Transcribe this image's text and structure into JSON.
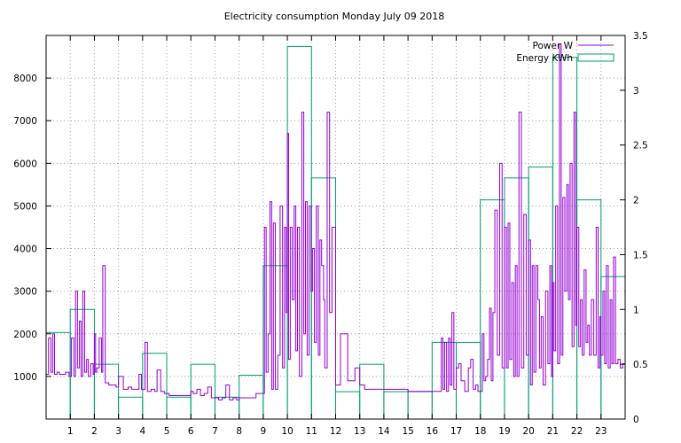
{
  "chart_data": {
    "type": "line",
    "title": "Electricity consumption Monday July 09 2018",
    "xlabel": "",
    "ylabel": "",
    "y2label": "",
    "xlim": [
      0,
      24
    ],
    "ylim": [
      0,
      9000
    ],
    "y2lim": [
      0,
      3.5
    ],
    "x_ticks": [
      1,
      2,
      3,
      4,
      5,
      6,
      7,
      8,
      9,
      10,
      11,
      12,
      13,
      14,
      15,
      16,
      17,
      18,
      19,
      20,
      21,
      22,
      23
    ],
    "y_ticks": [
      1000,
      2000,
      3000,
      4000,
      5000,
      6000,
      7000,
      8000
    ],
    "y2_ticks": [
      0,
      0.5,
      1,
      1.5,
      2,
      2.5,
      3,
      3.5
    ],
    "grid": true,
    "legend_position": "top-right",
    "colors": {
      "power": "#9400d3",
      "energy": "#009e73"
    },
    "series": [
      {
        "name": "Energy KWh",
        "axis": "y2",
        "style": "steps-box",
        "x": [
          0,
          1,
          2,
          3,
          4,
          5,
          6,
          7,
          8,
          9,
          10,
          11,
          12,
          13,
          14,
          15,
          16,
          17,
          18,
          19,
          20,
          21,
          22,
          23
        ],
        "values": [
          0.79,
          1.0,
          0.5,
          0.2,
          0.6,
          0.2,
          0.5,
          0.2,
          0.4,
          1.4,
          3.4,
          2.2,
          0.25,
          0.5,
          0.25,
          0.25,
          0.7,
          0.7,
          2.0,
          2.2,
          2.3,
          3.3,
          2.0,
          1.3
        ]
      },
      {
        "name": "Power W",
        "axis": "y",
        "style": "line",
        "x": [
          0.0,
          0.1,
          0.2,
          0.28,
          0.35,
          0.45,
          0.55,
          0.7,
          0.8,
          0.95,
          1.05,
          1.15,
          1.22,
          1.3,
          1.38,
          1.45,
          1.52,
          1.6,
          1.68,
          1.75,
          1.85,
          1.95,
          2.0,
          2.05,
          2.1,
          2.2,
          2.3,
          2.35,
          2.45,
          2.6,
          2.75,
          2.9,
          3.0,
          3.2,
          3.4,
          3.55,
          3.7,
          3.85,
          3.95,
          4.1,
          4.2,
          4.35,
          4.5,
          4.6,
          4.75,
          4.9,
          5.1,
          5.3,
          5.5,
          5.7,
          5.85,
          6.0,
          6.1,
          6.25,
          6.4,
          6.55,
          6.7,
          6.85,
          7.0,
          7.15,
          7.3,
          7.45,
          7.6,
          7.75,
          7.9,
          8.0,
          8.1,
          8.3,
          8.5,
          8.7,
          8.9,
          9.0,
          9.05,
          9.12,
          9.2,
          9.28,
          9.35,
          9.42,
          9.5,
          9.6,
          9.7,
          9.8,
          9.88,
          9.95,
          10.0,
          10.05,
          10.12,
          10.2,
          10.28,
          10.35,
          10.42,
          10.5,
          10.6,
          10.68,
          10.75,
          10.82,
          10.9,
          10.98,
          11.05,
          11.12,
          11.2,
          11.28,
          11.35,
          11.42,
          11.5,
          11.55,
          11.65,
          11.75,
          11.85,
          12.0,
          12.2,
          12.5,
          12.8,
          13.0,
          13.2,
          13.5,
          14.0,
          14.5,
          15.0,
          15.5,
          15.8,
          16.0,
          16.08,
          16.15,
          16.22,
          16.3,
          16.38,
          16.45,
          16.52,
          16.6,
          16.68,
          16.75,
          16.82,
          16.9,
          17.0,
          17.1,
          17.2,
          17.35,
          17.5,
          17.6,
          17.7,
          17.8,
          17.9,
          18.0,
          18.08,
          18.15,
          18.22,
          18.3,
          18.38,
          18.45,
          18.52,
          18.6,
          18.7,
          18.8,
          18.9,
          19.0,
          19.08,
          19.15,
          19.22,
          19.3,
          19.38,
          19.45,
          19.52,
          19.6,
          19.7,
          19.8,
          19.9,
          20.0,
          20.08,
          20.15,
          20.22,
          20.3,
          20.38,
          20.45,
          20.52,
          20.6,
          20.7,
          20.8,
          20.88,
          20.95,
          21.0,
          21.05,
          21.12,
          21.2,
          21.28,
          21.35,
          21.42,
          21.5,
          21.58,
          21.65,
          21.72,
          21.8,
          21.88,
          21.95,
          22.0,
          22.08,
          22.15,
          22.22,
          22.3,
          22.38,
          22.45,
          22.52,
          22.6,
          22.7,
          22.8,
          22.88,
          22.95,
          23.0,
          23.08,
          23.15,
          23.22,
          23.3,
          23.38,
          23.45,
          23.52,
          23.6,
          23.7,
          23.8,
          23.9,
          24.0
        ],
        "values": [
          1050,
          1900,
          1100,
          2000,
          1050,
          1100,
          1050,
          1050,
          1100,
          1000,
          1900,
          1000,
          3000,
          1200,
          2300,
          1000,
          3000,
          1100,
          1400,
          1000,
          1300,
          1050,
          2000,
          1100,
          1200,
          1900,
          1100,
          3600,
          850,
          800,
          800,
          750,
          1000,
          700,
          750,
          700,
          700,
          1050,
          700,
          1800,
          650,
          700,
          650,
          1150,
          650,
          600,
          550,
          550,
          550,
          550,
          550,
          650,
          600,
          700,
          550,
          600,
          750,
          500,
          500,
          450,
          500,
          800,
          450,
          500,
          450,
          500,
          500,
          500,
          500,
          600,
          600,
          600,
          4500,
          1100,
          2000,
          5100,
          700,
          4600,
          700,
          1500,
          5000,
          1200,
          4500,
          2500,
          6700,
          1400,
          4500,
          2800,
          5000,
          1600,
          4500,
          1000,
          7200,
          2000,
          5100,
          1500,
          5000,
          3000,
          4000,
          1800,
          5000,
          1500,
          4200,
          3600,
          2800,
          1200,
          7200,
          2500,
          4500,
          800,
          2000,
          900,
          1200,
          800,
          700,
          700,
          700,
          700,
          650,
          650,
          650,
          650,
          650,
          650,
          650,
          650,
          1900,
          700,
          1800,
          650,
          1900,
          800,
          2500,
          700,
          1200,
          1300,
          900,
          650,
          1200,
          1400,
          700,
          800,
          650,
          650,
          2000,
          900,
          1000,
          1400,
          2600,
          900,
          2500,
          4900,
          1500,
          6000,
          1200,
          4500,
          1200,
          4600,
          1400,
          3200,
          1000,
          3600,
          1000,
          7200,
          1200,
          4800,
          1500,
          4200,
          800,
          3600,
          1100,
          3600,
          2800,
          1200,
          2400,
          800,
          3000,
          1300,
          3600,
          1000,
          3200,
          1600,
          5000,
          1300,
          8800,
          1500,
          5200,
          3000,
          5500,
          2800,
          6000,
          1700,
          7200,
          2200,
          4500,
          1700,
          2800,
          1500,
          3500,
          1800,
          2200,
          1500,
          2800,
          1500,
          4500,
          1200,
          2400,
          1500,
          3000,
          1300,
          3600,
          1200,
          2800,
          1300,
          3800,
          1300,
          1400,
          1200,
          1300,
          1250
        ]
      }
    ]
  }
}
